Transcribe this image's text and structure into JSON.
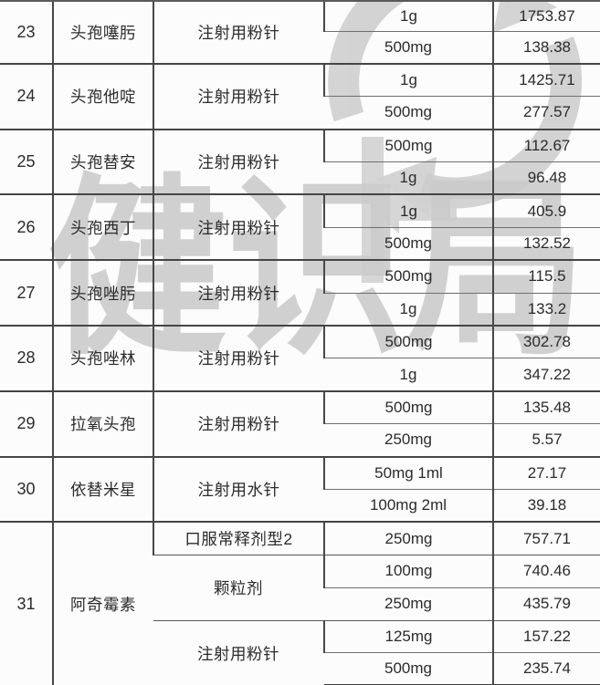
{
  "page": {
    "background": "#fcfcfc",
    "description_colors": {
      "border_dark": "#454545",
      "border_light": "#6f6f6f",
      "text": "#2b2b2b",
      "watermark_gray": "#c9c9c9"
    }
  },
  "watermark": {
    "text": "健识局",
    "icons": [
      "circular-arrows-icon",
      "left-arrow-icon"
    ]
  },
  "table": {
    "rows": [
      {
        "no": "23",
        "name": "头孢噻肟",
        "forms": [
          {
            "form": "注射用粉针",
            "specs": [
              {
                "spec": "1g",
                "price": "1753.87"
              },
              {
                "spec": "500mg",
                "price": "138.38"
              }
            ]
          }
        ]
      },
      {
        "no": "24",
        "name": "头孢他啶",
        "forms": [
          {
            "form": "注射用粉针",
            "specs": [
              {
                "spec": "1g",
                "price": "1425.71"
              },
              {
                "spec": "500mg",
                "price": "277.57"
              }
            ]
          }
        ]
      },
      {
        "no": "25",
        "name": "头孢替安",
        "forms": [
          {
            "form": "注射用粉针",
            "specs": [
              {
                "spec": "500mg",
                "price": "112.67"
              },
              {
                "spec": "1g",
                "price": "96.48"
              }
            ]
          }
        ]
      },
      {
        "no": "26",
        "name": "头孢西丁",
        "forms": [
          {
            "form": "注射用粉针",
            "specs": [
              {
                "spec": "1g",
                "price": "405.9"
              },
              {
                "spec": "500mg",
                "price": "132.52"
              }
            ]
          }
        ]
      },
      {
        "no": "27",
        "name": "头孢唑肟",
        "forms": [
          {
            "form": "注射用粉针",
            "specs": [
              {
                "spec": "500mg",
                "price": "115.5"
              },
              {
                "spec": "1g",
                "price": "133.2"
              }
            ]
          }
        ]
      },
      {
        "no": "28",
        "name": "头孢唑林",
        "forms": [
          {
            "form": "注射用粉针",
            "specs": [
              {
                "spec": "500mg",
                "price": "302.78"
              },
              {
                "spec": "1g",
                "price": "347.22"
              }
            ]
          }
        ]
      },
      {
        "no": "29",
        "name": "拉氧头孢",
        "forms": [
          {
            "form": "注射用粉针",
            "specs": [
              {
                "spec": "500mg",
                "price": "135.48"
              },
              {
                "spec": "250mg",
                "price": "5.57"
              }
            ]
          }
        ]
      },
      {
        "no": "30",
        "name": "依替米星",
        "forms": [
          {
            "form": "注射用水针",
            "specs": [
              {
                "spec": "50mg 1ml",
                "price": "27.17"
              },
              {
                "spec": "100mg 2ml",
                "price": "39.18"
              }
            ]
          }
        ]
      },
      {
        "no": "31",
        "name": "阿奇霉素",
        "forms": [
          {
            "form": "口服常释剂型2",
            "specs": [
              {
                "spec": "250mg",
                "price": "757.71"
              }
            ]
          },
          {
            "form": "颗粒剂",
            "specs": [
              {
                "spec": "100mg",
                "price": "740.46"
              },
              {
                "spec": "250mg",
                "price": "435.79"
              }
            ]
          },
          {
            "form": "注射用粉针",
            "specs": [
              {
                "spec": "125mg",
                "price": "157.22"
              },
              {
                "spec": "500mg",
                "price": "235.74"
              }
            ]
          }
        ]
      }
    ]
  }
}
